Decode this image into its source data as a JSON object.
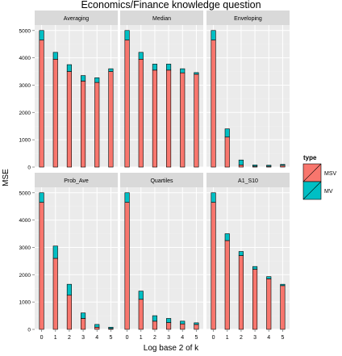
{
  "chart_data": {
    "type": "bar",
    "stacked": true,
    "title": "Economics/Finance knowledge question",
    "xlabel": "Log base 2 of k",
    "ylabel": "MSE",
    "x": [
      0,
      1,
      2,
      3,
      4,
      5
    ],
    "ylim": [
      0,
      5200
    ],
    "yticks": [
      0,
      1000,
      2000,
      3000,
      4000,
      5000
    ],
    "grid": true,
    "legend": {
      "title": "type",
      "position": "right",
      "entries": [
        "MSV",
        "MV"
      ]
    },
    "colors": {
      "MSV": "#F8766D",
      "MV": "#00BFC4",
      "panel_bg": "#EBEBEB",
      "strip_bg": "#D9D9D9",
      "grid": "#FFFFFF"
    },
    "panels": [
      {
        "name": "Averaging",
        "series": [
          {
            "name": "MSV",
            "values": [
              4650,
              3950,
              3500,
              3150,
              3100,
              3500
            ]
          },
          {
            "name": "MV",
            "values": [
              350,
              250,
              250,
              200,
              170,
              100
            ]
          }
        ]
      },
      {
        "name": "Median",
        "series": [
          {
            "name": "MSV",
            "values": [
              4650,
              3950,
              3550,
              3550,
              3450,
              3400
            ]
          },
          {
            "name": "MV",
            "values": [
              350,
              250,
              220,
              220,
              150,
              60
            ]
          }
        ]
      },
      {
        "name": "Enveloping",
        "series": [
          {
            "name": "MSV",
            "values": [
              4650,
              1100,
              80,
              30,
              30,
              60
            ]
          },
          {
            "name": "MV",
            "values": [
              350,
              300,
              180,
              50,
              40,
              40
            ]
          }
        ]
      },
      {
        "name": "Prob_Ave",
        "series": [
          {
            "name": "MSV",
            "values": [
              4650,
              2600,
              1250,
              400,
              80,
              30
            ]
          },
          {
            "name": "MV",
            "values": [
              350,
              450,
              400,
              200,
              100,
              50
            ]
          }
        ]
      },
      {
        "name": "Quartiles",
        "series": [
          {
            "name": "MSV",
            "values": [
              4650,
              1100,
              300,
              250,
              200,
              180
            ]
          },
          {
            "name": "MV",
            "values": [
              350,
              300,
              200,
              150,
              100,
              60
            ]
          }
        ]
      },
      {
        "name": "A1_S10",
        "series": [
          {
            "name": "MSV",
            "values": [
              4650,
              3250,
              2700,
              2200,
              1850,
              1600
            ]
          },
          {
            "name": "MV",
            "values": [
              350,
              250,
              150,
              100,
              80,
              50
            ]
          }
        ]
      }
    ]
  }
}
